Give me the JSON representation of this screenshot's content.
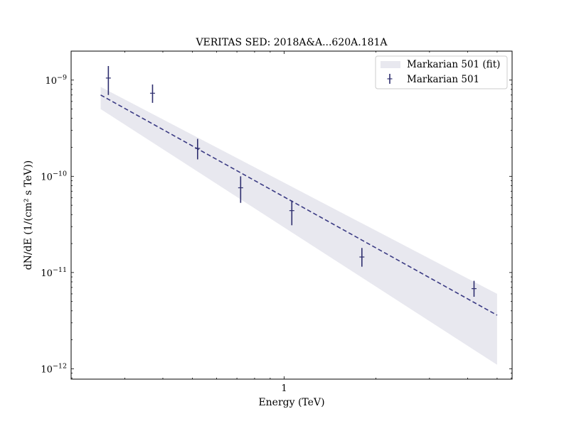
{
  "chart_data": {
    "type": "scatter",
    "title": "VERITAS SED: 2018A&A...620A.181A",
    "xlabel": "Energy (TeV)",
    "ylabel": "dN/dE (1/(cm² s TeV))",
    "xscale": "log",
    "yscale": "log",
    "xlim": [
      0.2,
      5.6
    ],
    "ylim": [
      7.8e-13,
      2e-09
    ],
    "x_ticks": [
      {
        "value": 1,
        "label": "1"
      }
    ],
    "y_ticks": [
      {
        "value": 1e-12,
        "base": "10",
        "exp": "−12"
      },
      {
        "value": 1e-11,
        "base": "10",
        "exp": "−11"
      },
      {
        "value": 1e-10,
        "base": "10",
        "exp": "−10"
      },
      {
        "value": 1e-09,
        "base": "10",
        "exp": "−9"
      }
    ],
    "grid": false,
    "legend_position": "top-right",
    "colors": {
      "points": "#2e2e6e",
      "fit_line": "#3b3b84",
      "band": "#e8e8ef"
    },
    "fit": {
      "name": "Markarian 501 (fit)",
      "x": [
        0.25,
        5.0
      ],
      "y": [
        7e-10,
        3.6e-12
      ],
      "band_lower": [
        5e-10,
        1.1e-12
      ],
      "band_upper": [
        8.5e-10,
        6e-12
      ]
    },
    "series": [
      {
        "name": "Markarian 501",
        "points": [
          {
            "x": 0.265,
            "y": 1.05e-09,
            "ylo": 7e-10,
            "yhi": 1.4e-09
          },
          {
            "x": 0.37,
            "y": 7.3e-10,
            "ylo": 5.8e-10,
            "yhi": 9e-10
          },
          {
            "x": 0.52,
            "y": 1.95e-10,
            "ylo": 1.5e-10,
            "yhi": 2.45e-10
          },
          {
            "x": 0.72,
            "y": 7.6e-11,
            "ylo": 5.3e-11,
            "yhi": 1e-10
          },
          {
            "x": 1.06,
            "y": 4.4e-11,
            "ylo": 3.1e-11,
            "yhi": 5.6e-11
          },
          {
            "x": 1.8,
            "y": 1.45e-11,
            "ylo": 1.15e-11,
            "yhi": 1.8e-11
          },
          {
            "x": 4.2,
            "y": 6.8e-12,
            "ylo": 5.6e-12,
            "yhi": 8.2e-12
          }
        ]
      }
    ]
  }
}
